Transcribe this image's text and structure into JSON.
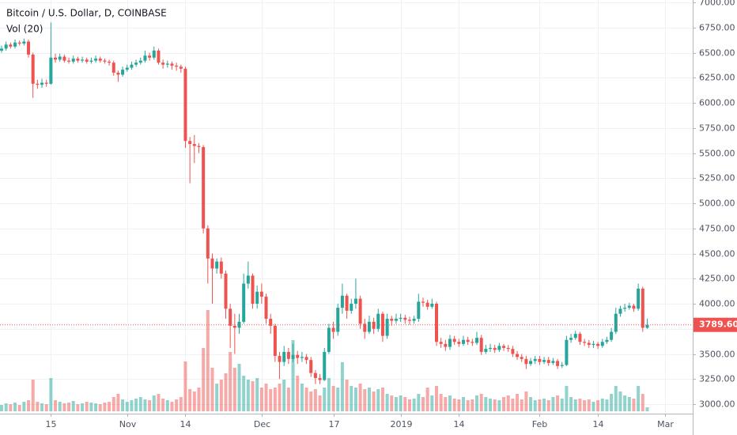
{
  "chart_data": {
    "type": "candlestick",
    "title": "Bitcoin / U.S. Dollar, D, COINBASE",
    "volume_label": "Vol (20)",
    "up_color": "#26a69a",
    "down_color": "#ef5350",
    "grid": true,
    "ylim": [
      3000,
      7000
    ],
    "yticks": [
      {
        "value": 7000,
        "label": "7000.00"
      },
      {
        "value": 6750,
        "label": "6750.00"
      },
      {
        "value": 6500,
        "label": "6500.00"
      },
      {
        "value": 6250,
        "label": "6250.00"
      },
      {
        "value": 6000,
        "label": "6000.00"
      },
      {
        "value": 5750,
        "label": "5750.00"
      },
      {
        "value": 5500,
        "label": "5500.00"
      },
      {
        "value": 5250,
        "label": "5250.00"
      },
      {
        "value": 5000,
        "label": "5000.00"
      },
      {
        "value": 4750,
        "label": "4750.00"
      },
      {
        "value": 4500,
        "label": "4500.00"
      },
      {
        "value": 4250,
        "label": "4250.00"
      },
      {
        "value": 4000,
        "label": "4000.00"
      },
      {
        "value": 3750,
        "label": "3750.00"
      },
      {
        "value": 3500,
        "label": "3500.00"
      },
      {
        "value": 3250,
        "label": "3250.00"
      },
      {
        "value": 3000,
        "label": "3000.00"
      }
    ],
    "xticks": [
      {
        "value": 11,
        "label": "15"
      },
      {
        "value": 28,
        "label": "Nov"
      },
      {
        "value": 41,
        "label": "14"
      },
      {
        "value": 58,
        "label": "Dec"
      },
      {
        "value": 74,
        "label": "17"
      },
      {
        "value": 89,
        "label": "2019"
      },
      {
        "value": 102,
        "label": "14"
      },
      {
        "value": 120,
        "label": "Feb"
      },
      {
        "value": 133,
        "label": "14"
      },
      {
        "value": 148,
        "label": "Mar"
      }
    ],
    "last_price": {
      "value": 3789.6,
      "label": "3789.60"
    },
    "open": [
      6520,
      6540,
      6580,
      6560,
      6600,
      6590,
      6610,
      6480,
      6190,
      6180,
      6200,
      6190,
      6450,
      6430,
      6460,
      6420,
      6410,
      6440,
      6420,
      6430,
      6410,
      6420,
      6440,
      6420,
      6410,
      6400,
      6300,
      6280,
      6330,
      6350,
      6380,
      6400,
      6420,
      6470,
      6450,
      6520,
      6400,
      6380,
      6390,
      6370,
      6360,
      6340,
      5620,
      5590,
      5570,
      5560,
      4750,
      4450,
      4350,
      4420,
      4300,
      3950,
      3780,
      3760,
      3820,
      4200,
      4280,
      4000,
      4120,
      4070,
      3850,
      3780,
      3480,
      3420,
      3520,
      3450,
      3490,
      3460,
      3470,
      3440,
      3310,
      3260,
      3240,
      3520,
      3760,
      3720,
      3960,
      4080,
      3930,
      4000,
      4050,
      3800,
      3720,
      3820,
      3750,
      3900,
      3680,
      3850,
      3830,
      3850,
      3860,
      3840,
      3830,
      3850,
      4020,
      4010,
      3970,
      4000,
      3620,
      3600,
      3570,
      3650,
      3620,
      3600,
      3640,
      3620,
      3610,
      3660,
      3520,
      3550,
      3560,
      3540,
      3580,
      3560,
      3550,
      3500,
      3470,
      3450,
      3400,
      3430,
      3450,
      3420,
      3440,
      3410,
      3430,
      3380,
      3390,
      3640,
      3660,
      3700,
      3620,
      3610,
      3590,
      3600,
      3580,
      3620,
      3640,
      3720,
      3900,
      3950,
      3960,
      3980,
      3950,
      4150,
      3760
    ],
    "high": [
      6570,
      6610,
      6600,
      6630,
      6620,
      6640,
      6630,
      6500,
      6230,
      6240,
      6230,
      6800,
      6490,
      6490,
      6480,
      6450,
      6470,
      6460,
      6460,
      6450,
      6450,
      6470,
      6460,
      6440,
      6430,
      6420,
      6320,
      6360,
      6380,
      6410,
      6430,
      6450,
      6520,
      6500,
      6560,
      6540,
      6430,
      6420,
      6410,
      6400,
      6380,
      6360,
      5660,
      5680,
      5600,
      5580,
      4780,
      4500,
      4450,
      4460,
      4330,
      4000,
      3900,
      3900,
      4300,
      4420,
      4300,
      4180,
      4200,
      4100,
      3900,
      3800,
      3520,
      3580,
      3560,
      3600,
      3530,
      3520,
      3500,
      3470,
      3340,
      3300,
      3560,
      3800,
      3820,
      4000,
      4200,
      4100,
      4050,
      4250,
      4080,
      3850,
      3880,
      3860,
      3950,
      3920,
      3900,
      3880,
      3900,
      3900,
      3890,
      3870,
      3880,
      4100,
      4060,
      4040,
      4050,
      4020,
      3660,
      3640,
      3690,
      3680,
      3650,
      3680,
      3670,
      3650,
      3720,
      3690,
      3590,
      3600,
      3590,
      3610,
      3600,
      3590,
      3580,
      3530,
      3500,
      3480,
      3460,
      3480,
      3480,
      3470,
      3470,
      3460,
      3450,
      3420,
      3680,
      3700,
      3730,
      3720,
      3650,
      3640,
      3630,
      3620,
      3650,
      3670,
      3760,
      3960,
      3980,
      4000,
      4010,
      4000,
      4200,
      4170,
      3850
    ],
    "low": [
      6500,
      6520,
      6540,
      6540,
      6570,
      6570,
      6450,
      6050,
      6140,
      6150,
      6160,
      6180,
      6400,
      6410,
      6400,
      6390,
      6390,
      6400,
      6400,
      6390,
      6390,
      6400,
      6400,
      6390,
      6370,
      6270,
      6210,
      6260,
      6310,
      6330,
      6360,
      6380,
      6400,
      6420,
      6430,
      6380,
      6340,
      6350,
      6330,
      6320,
      6300,
      5550,
      5200,
      5400,
      5500,
      4700,
      4200,
      4000,
      4300,
      4250,
      3850,
      3560,
      3500,
      3700,
      3800,
      4150,
      3950,
      3950,
      4000,
      3800,
      3700,
      3420,
      3250,
      3380,
      3400,
      3420,
      3400,
      3420,
      3400,
      3270,
      3200,
      3200,
      3230,
      3500,
      3650,
      3680,
      3900,
      3850,
      3900,
      3950,
      3750,
      3650,
      3700,
      3700,
      3720,
      3620,
      3650,
      3780,
      3800,
      3820,
      3800,
      3790,
      3800,
      3820,
      3970,
      3940,
      3950,
      3580,
      3560,
      3530,
      3540,
      3590,
      3570,
      3580,
      3590,
      3580,
      3590,
      3490,
      3500,
      3520,
      3510,
      3520,
      3530,
      3520,
      3470,
      3440,
      3420,
      3350,
      3380,
      3400,
      3390,
      3400,
      3380,
      3390,
      3350,
      3360,
      3380,
      3610,
      3640,
      3590,
      3580,
      3560,
      3560,
      3550,
      3560,
      3600,
      3620,
      3700,
      3870,
      3920,
      3940,
      3920,
      3930,
      3720,
      3750
    ],
    "close": [
      6540,
      6580,
      6560,
      6600,
      6590,
      6610,
      6480,
      6190,
      6180,
      6200,
      6190,
      6450,
      6430,
      6460,
      6420,
      6410,
      6440,
      6420,
      6430,
      6410,
      6420,
      6440,
      6420,
      6410,
      6400,
      6300,
      6280,
      6330,
      6350,
      6380,
      6400,
      6420,
      6470,
      6450,
      6520,
      6400,
      6380,
      6390,
      6370,
      6360,
      6340,
      5620,
      5590,
      5570,
      5560,
      4750,
      4450,
      4350,
      4420,
      4300,
      3950,
      3780,
      3760,
      3820,
      4200,
      4280,
      4000,
      4120,
      4070,
      3850,
      3780,
      3480,
      3420,
      3520,
      3450,
      3490,
      3460,
      3470,
      3440,
      3310,
      3260,
      3240,
      3520,
      3760,
      3720,
      3960,
      4080,
      3930,
      4000,
      4050,
      3800,
      3720,
      3820,
      3750,
      3900,
      3680,
      3850,
      3830,
      3850,
      3860,
      3840,
      3830,
      3850,
      4020,
      4010,
      3970,
      4000,
      3620,
      3600,
      3570,
      3650,
      3620,
      3600,
      3640,
      3620,
      3610,
      3660,
      3520,
      3550,
      3560,
      3540,
      3580,
      3560,
      3550,
      3500,
      3470,
      3450,
      3400,
      3430,
      3450,
      3420,
      3440,
      3410,
      3430,
      3380,
      3390,
      3640,
      3660,
      3700,
      3620,
      3610,
      3590,
      3600,
      3580,
      3620,
      3640,
      3720,
      3900,
      3950,
      3960,
      3980,
      3950,
      4150,
      3760,
      3789.6
    ],
    "volume": [
      8,
      10,
      9,
      11,
      8,
      12,
      14,
      40,
      12,
      10,
      9,
      42,
      14,
      12,
      10,
      11,
      13,
      9,
      10,
      12,
      11,
      10,
      9,
      11,
      12,
      18,
      22,
      15,
      12,
      14,
      16,
      18,
      15,
      14,
      20,
      22,
      16,
      14,
      12,
      15,
      18,
      63,
      28,
      25,
      30,
      80,
      128,
      55,
      35,
      40,
      48,
      75,
      55,
      60,
      45,
      40,
      38,
      42,
      30,
      35,
      28,
      30,
      35,
      40,
      30,
      90,
      45,
      35,
      30,
      25,
      28,
      20,
      30,
      42,
      32,
      30,
      62,
      40,
      32,
      30,
      35,
      28,
      30,
      25,
      28,
      30,
      22,
      20,
      18,
      20,
      18,
      15,
      16,
      22,
      18,
      30,
      20,
      32,
      22,
      18,
      20,
      16,
      15,
      18,
      14,
      15,
      20,
      22,
      18,
      16,
      15,
      14,
      18,
      20,
      16,
      22,
      15,
      25,
      18,
      14,
      15,
      16,
      14,
      18,
      20,
      16,
      32,
      18,
      15,
      16,
      14,
      15,
      12,
      14,
      16,
      15,
      22,
      32,
      25,
      20,
      18,
      16,
      32,
      22,
      5
    ]
  }
}
